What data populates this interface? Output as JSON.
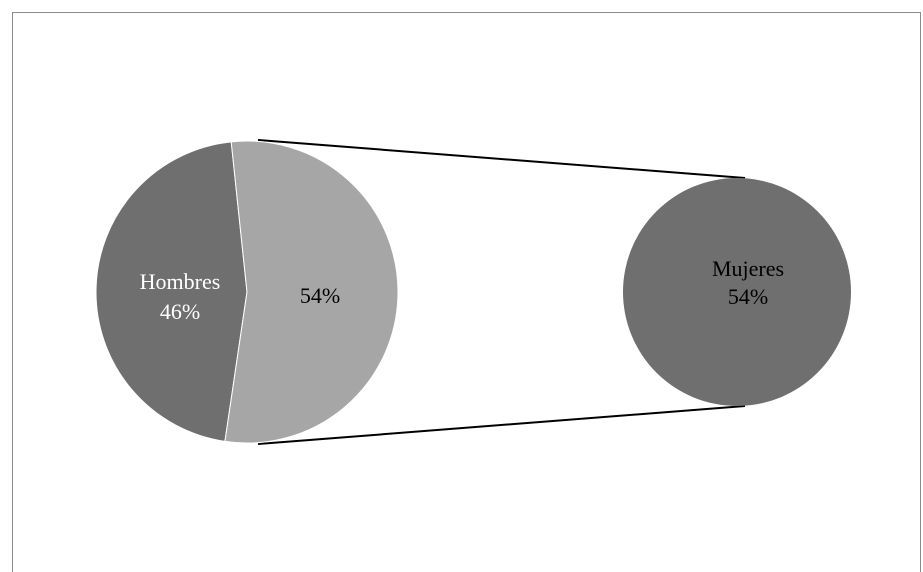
{
  "chart_data": {
    "type": "pie-of-pie",
    "main_pie": {
      "slices": [
        {
          "label": "Hombres",
          "value": 46,
          "value_text": "46%",
          "color": "#6f6f6f",
          "text_color": "#ffffff"
        },
        {
          "label": "",
          "value": 54,
          "value_text": "54%",
          "color": "#a6a6a6",
          "text_color": "#000000"
        }
      ]
    },
    "secondary_pie": {
      "slices": [
        {
          "label": "Mujeres",
          "value": 54,
          "value_text": "54%",
          "color": "#6f6f6f",
          "text_color": "#000000"
        }
      ]
    },
    "connector_color": "#000000",
    "border_color": "#8c8c8c"
  }
}
